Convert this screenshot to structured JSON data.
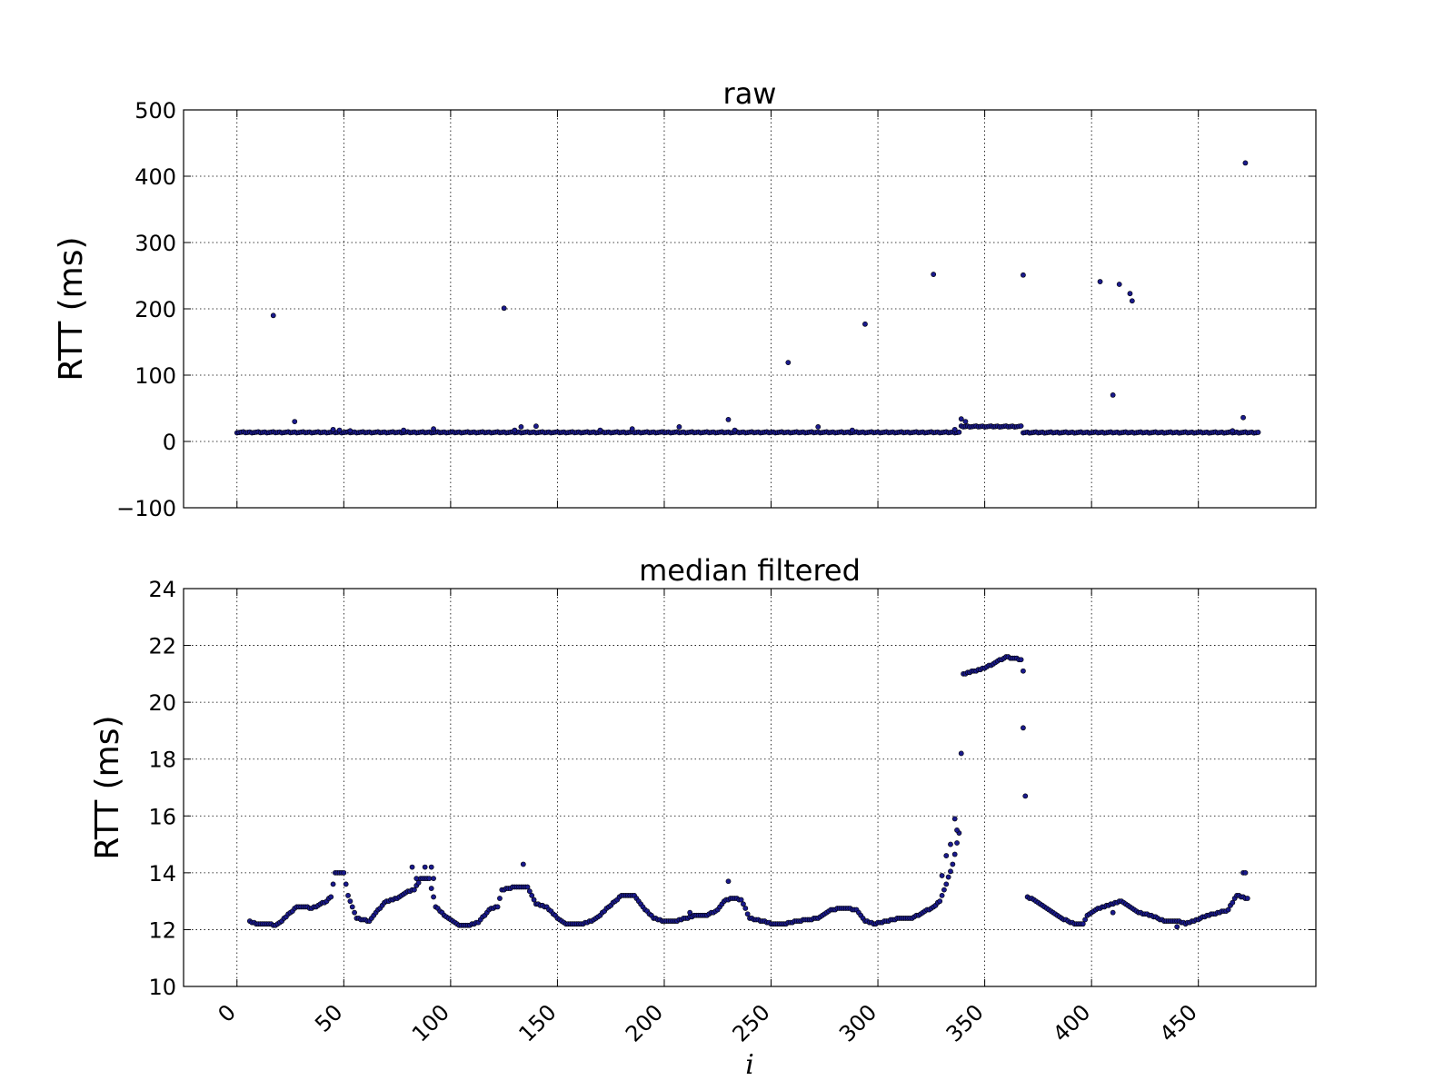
{
  "chart_data": [
    {
      "type": "scatter",
      "title": "raw",
      "xlabel": "",
      "ylabel": "RTT (ms)",
      "xlim": [
        -25,
        505
      ],
      "ylim": [
        -100,
        500
      ],
      "xticks": [
        0,
        50,
        100,
        150,
        200,
        250,
        300,
        350,
        400,
        450
      ],
      "xtick_labels_visible": false,
      "yticks": [
        -100,
        0,
        100,
        200,
        300,
        400,
        500
      ],
      "ytick_labels": [
        "−100",
        "0",
        "100",
        "200",
        "300",
        "400",
        "500"
      ],
      "grid": true,
      "marker_color": "#1a1a8c",
      "baseline": [
        {
          "x_start": 0,
          "x_end": 338,
          "y": 13
        },
        {
          "x_start": 339,
          "x_end": 367,
          "y": 21.8
        },
        {
          "x_start": 368,
          "x_end": 478,
          "y": 12.8
        }
      ],
      "points": [
        {
          "x": 17,
          "y": 190
        },
        {
          "x": 27,
          "y": 30
        },
        {
          "x": 45,
          "y": 18
        },
        {
          "x": 48,
          "y": 17
        },
        {
          "x": 53,
          "y": 16
        },
        {
          "x": 78,
          "y": 17
        },
        {
          "x": 92,
          "y": 19
        },
        {
          "x": 125,
          "y": 201
        },
        {
          "x": 130,
          "y": 17
        },
        {
          "x": 133,
          "y": 22
        },
        {
          "x": 140,
          "y": 23
        },
        {
          "x": 170,
          "y": 17
        },
        {
          "x": 185,
          "y": 19
        },
        {
          "x": 207,
          "y": 22
        },
        {
          "x": 230,
          "y": 33
        },
        {
          "x": 233,
          "y": 17
        },
        {
          "x": 258,
          "y": 119
        },
        {
          "x": 272,
          "y": 22
        },
        {
          "x": 288,
          "y": 17
        },
        {
          "x": 294,
          "y": 177
        },
        {
          "x": 326,
          "y": 252
        },
        {
          "x": 336,
          "y": 18
        },
        {
          "x": 339,
          "y": 34
        },
        {
          "x": 341,
          "y": 30
        },
        {
          "x": 368,
          "y": 251
        },
        {
          "x": 404,
          "y": 241
        },
        {
          "x": 410,
          "y": 70
        },
        {
          "x": 413,
          "y": 237
        },
        {
          "x": 418,
          "y": 223
        },
        {
          "x": 419,
          "y": 212
        },
        {
          "x": 466,
          "y": 16
        },
        {
          "x": 471,
          "y": 36
        },
        {
          "x": 472,
          "y": 420
        }
      ]
    },
    {
      "type": "scatter",
      "title": "median filtered",
      "xlabel": "i",
      "ylabel": "RTT (ms)",
      "xlim": [
        -25,
        505
      ],
      "ylim": [
        10,
        24
      ],
      "xticks": [
        0,
        50,
        100,
        150,
        200,
        250,
        300,
        350,
        400,
        450
      ],
      "xtick_labels": [
        "0",
        "50",
        "100",
        "150",
        "200",
        "250",
        "300",
        "350",
        "400",
        "450"
      ],
      "yticks": [
        10,
        12,
        14,
        16,
        18,
        20,
        22,
        24
      ],
      "ytick_labels": [
        "10",
        "12",
        "14",
        "16",
        "18",
        "20",
        "22",
        "24"
      ],
      "grid": true,
      "marker_color": "#1a1a8c",
      "x_range": [
        6,
        473
      ],
      "profile_x": [
        6,
        9,
        12,
        15,
        18,
        21,
        25,
        28,
        31,
        35,
        38,
        42,
        44,
        46,
        50,
        52,
        56,
        62,
        66,
        70,
        75,
        79,
        83,
        86,
        90,
        93,
        97,
        101,
        104,
        108,
        113,
        118,
        122,
        124,
        130,
        136,
        140,
        145,
        150,
        154,
        158,
        162,
        166,
        170,
        174,
        180,
        186,
        190,
        195,
        200,
        205,
        210,
        215,
        220,
        225,
        228,
        232,
        236,
        240,
        246,
        250,
        256,
        262,
        268,
        272,
        278,
        284,
        290,
        294,
        298,
        304,
        310,
        316,
        321,
        326,
        329,
        332,
        335,
        338,
        340,
        345,
        350,
        355,
        360,
        367,
        369,
        370,
        374,
        378,
        382,
        386,
        392,
        396,
        398,
        402,
        406,
        410,
        414,
        418,
        422,
        428,
        434,
        440,
        444,
        448,
        454,
        460,
        464,
        468,
        473
      ],
      "profile_y": [
        12.3,
        12.2,
        12.2,
        12.2,
        12.15,
        12.3,
        12.6,
        12.8,
        12.8,
        12.75,
        12.85,
        13.0,
        13.15,
        14.0,
        14.0,
        13.2,
        12.4,
        12.3,
        12.7,
        13.0,
        13.1,
        13.3,
        13.4,
        13.8,
        13.8,
        12.8,
        12.5,
        12.3,
        12.15,
        12.15,
        12.25,
        12.7,
        12.8,
        13.4,
        13.5,
        13.5,
        12.9,
        12.8,
        12.4,
        12.2,
        12.2,
        12.2,
        12.3,
        12.5,
        12.8,
        13.2,
        13.2,
        12.8,
        12.4,
        12.3,
        12.3,
        12.4,
        12.5,
        12.5,
        12.7,
        13.0,
        13.1,
        13.05,
        12.4,
        12.3,
        12.2,
        12.2,
        12.3,
        12.35,
        12.4,
        12.7,
        12.75,
        12.7,
        12.3,
        12.2,
        12.3,
        12.4,
        12.4,
        12.6,
        12.8,
        13.0,
        13.6,
        14.3,
        15.4,
        21.0,
        21.1,
        21.2,
        21.4,
        21.6,
        21.5,
        16.7,
        13.15,
        13.0,
        12.8,
        12.6,
        12.4,
        12.2,
        12.2,
        12.5,
        12.7,
        12.8,
        12.9,
        13.0,
        12.8,
        12.6,
        12.5,
        12.3,
        12.3,
        12.2,
        12.3,
        12.5,
        12.6,
        12.7,
        13.2,
        13.1
      ],
      "extra_points": [
        {
          "x": 82,
          "y": 14.2
        },
        {
          "x": 84,
          "y": 13.8
        },
        {
          "x": 88,
          "y": 14.2
        },
        {
          "x": 91,
          "y": 14.2
        },
        {
          "x": 92,
          "y": 13.8
        },
        {
          "x": 134,
          "y": 14.3
        },
        {
          "x": 230,
          "y": 13.7
        },
        {
          "x": 336,
          "y": 15.9
        },
        {
          "x": 337,
          "y": 15.5
        },
        {
          "x": 334,
          "y": 15.0
        },
        {
          "x": 332,
          "y": 14.6
        },
        {
          "x": 330,
          "y": 13.9
        },
        {
          "x": 368,
          "y": 21.1
        },
        {
          "x": 410,
          "y": 12.6
        },
        {
          "x": 440,
          "y": 12.1
        },
        {
          "x": 471,
          "y": 14.0
        },
        {
          "x": 472,
          "y": 14.0
        },
        {
          "x": 212,
          "y": 12.6
        }
      ]
    }
  ]
}
